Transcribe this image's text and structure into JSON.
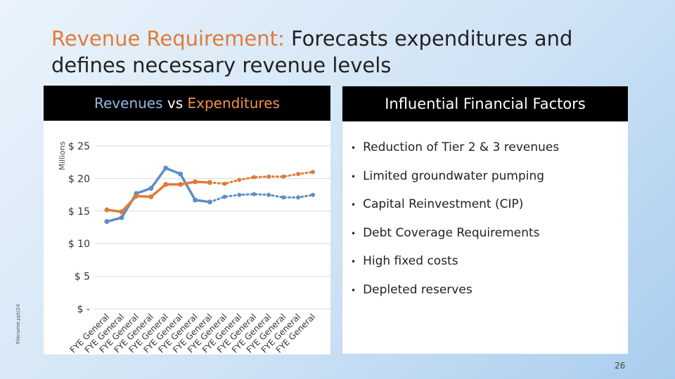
{
  "slide": {
    "title_highlight": "Revenue Requirement:",
    "title_rest": " Forecasts expenditures and defines necessary revenue levels",
    "side_note": "Filename.ppt/24",
    "page_number": "26",
    "factors_title": "Influential Financial Factors",
    "factors": [
      "Reduction of Tier 2 & 3 revenues",
      "Limited groundwater pumping",
      "Capital Reinvestment (CIP)",
      "Debt Coverage Requirements",
      "High fixed costs",
      "Depleted reserves"
    ]
  },
  "chart_data": {
    "type": "line",
    "title_connector": "vs",
    "y_label": "Millions",
    "categories": [
      "FYE General",
      "FYE General",
      "FYE General",
      "FYE General",
      "FYE General",
      "FYE General",
      "FYE General",
      "FYE General",
      "FYE General",
      "FYE General",
      "FYE General",
      "FYE General",
      "FYE General",
      "FYE General",
      "FYE General"
    ],
    "series": [
      {
        "name": "Revenues",
        "color": "#5b8fc5",
        "values": [
          13.4,
          14.0,
          17.7,
          18.5,
          21.6,
          20.7,
          16.7,
          16.4,
          17.2,
          17.5,
          17.6,
          17.5,
          17.1,
          17.1,
          17.5
        ],
        "styles": [
          "solid",
          "solid",
          "solid",
          "solid",
          "solid",
          "solid",
          "solid",
          "solid",
          "dotted",
          "dotted",
          "dotted",
          "dotted",
          "dotted",
          "dotted",
          "dotted"
        ]
      },
      {
        "name": "Expenditures",
        "color": "#e07b39",
        "values": [
          15.2,
          14.9,
          17.3,
          17.2,
          19.1,
          19.1,
          19.5,
          19.4,
          19.2,
          19.8,
          20.2,
          20.3,
          20.3,
          20.7,
          21.0
        ],
        "styles": [
          "solid",
          "solid",
          "solid",
          "solid",
          "solid",
          "solid",
          "solid",
          "solid",
          "dotted",
          "dotted",
          "dotted",
          "dotted",
          "dotted",
          "dotted",
          "dotted"
        ]
      }
    ],
    "ylim": [
      0,
      25
    ],
    "yticks": [
      {
        "value": 0,
        "label": "$ -"
      },
      {
        "value": 5,
        "label": "$ 5"
      },
      {
        "value": 10,
        "label": "$ 10"
      },
      {
        "value": 15,
        "label": "$ 15"
      },
      {
        "value": 20,
        "label": "$ 20"
      },
      {
        "value": 25,
        "label": "$ 25"
      }
    ],
    "grid": true
  }
}
